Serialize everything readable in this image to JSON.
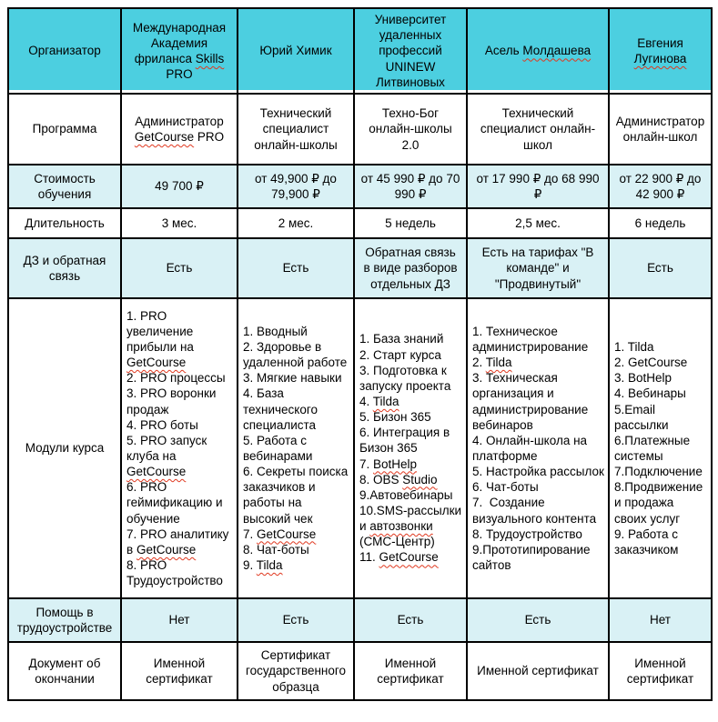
{
  "colors": {
    "header_bg": "#4ccfe0",
    "shaded_row_bg": "#d9f1f5",
    "row_bg": "#ffffff",
    "border": "#000000",
    "spellcheck_underline": "#e0381f",
    "text": "#000000"
  },
  "table": {
    "header": {
      "label": "Организатор",
      "organizers": [
        {
          "text": "Международная Академия фриланса Skills PRO",
          "squiggle": [
            "Skills"
          ]
        },
        {
          "text": "Юрий Химик",
          "squiggle": []
        },
        {
          "text": "Университет удаленных профессий UNINEW Литвиновых",
          "squiggle": []
        },
        {
          "text": "Асель Молдашева",
          "squiggle": [
            "Молдашева"
          ]
        },
        {
          "text": "Евгения Лугинова",
          "squiggle": [
            "Лугинова"
          ]
        }
      ]
    },
    "rows": [
      {
        "label": "Программа",
        "shaded": false,
        "cells": [
          {
            "text": "Администратор GetCourse PRO",
            "squiggle": [
              "GetCourse"
            ]
          },
          {
            "text": "Технический специалист онлайн-школы"
          },
          {
            "text": "Техно-Бог онлайн-школы 2.0"
          },
          {
            "text": "Технический специалист онлайн-школ"
          },
          {
            "text": "Администратор онлайн-школ"
          }
        ]
      },
      {
        "label": "Стоимость обучения",
        "shaded": true,
        "cells": [
          {
            "text": "49 700 ₽"
          },
          {
            "text": "от 49,900 ₽ до 79,900 ₽"
          },
          {
            "text": "от 45 990 ₽ до 70 990 ₽"
          },
          {
            "text": "от 17 990 ₽ до 68 990 ₽"
          },
          {
            "text": "от 22 900 ₽ до 42 900 ₽"
          }
        ]
      },
      {
        "label": "Длительность",
        "shaded": false,
        "cells": [
          {
            "text": "3 мес."
          },
          {
            "text": "2 мес."
          },
          {
            "text": "5 недель"
          },
          {
            "text": "2,5 мес."
          },
          {
            "text": "6 недель"
          }
        ]
      },
      {
        "label": "ДЗ и обратная связь",
        "shaded": true,
        "cells": [
          {
            "text": "Есть"
          },
          {
            "text": "Есть"
          },
          {
            "text": "Обратная связь в виде разборов отдельных ДЗ"
          },
          {
            "text": "Есть на тарифах \"В команде\" и \"Продвинутый\""
          },
          {
            "text": "Есть"
          }
        ]
      },
      {
        "label": "Модули курса",
        "shaded": false,
        "cells": [
          {
            "lines": [
              "1. PRO увеличение прибыли на GetCourse",
              "2. PRO процессы",
              "3. PRO воронки продаж",
              "4. PRO боты",
              "5. PRO запуск клуба на GetCourse",
              "6. PRO геймификацию и обучение",
              "7. PRO аналитику в GetCourse",
              "8. PRO Трудоустройство"
            ],
            "squiggle": [
              "GetCourse"
            ]
          },
          {
            "lines": [
              "1. Вводный",
              "2. Здоровье в удаленной работе",
              "3. Мягкие навыки",
              "4. База технического специалиста",
              "5. Работа с вебинарами",
              "6. Секреты поиска заказчиков и работы на высокий чек",
              "7. GetCourse",
              "8. Чат-боты",
              "9. Tilda"
            ],
            "squiggle": [
              "GetCourse",
              "Tilda"
            ]
          },
          {
            "lines": [
              "1. База знаний",
              "2. Старт курса",
              "3. Подготовка к запуску проекта",
              "4. Tilda",
              "5. Бизон 365",
              "6. Интеграция в Бизон 365",
              "7. BotHelp",
              "8. OBS Studio",
              "9.Автовебинары",
              "10.SMS-рассылки и автозвонки (СМС-Центр)",
              "11. GetCourse"
            ],
            "squiggle": [
              "Tilda",
              "BotHelp",
              "Studio",
              "автозвонки",
              "GetCourse"
            ]
          },
          {
            "lines": [
              "1. Техническое администрирование",
              "2. Tilda",
              "3. Техническая организация и администрирование вебинаров",
              "4. Онлайн-школа на платформе",
              "5. Настройка рассылок",
              "6. Чат-боты",
              "7.  Создание визуального контента",
              "8. Трудоустройство",
              "9.Прототипирование сайтов"
            ],
            "squiggle": [
              "Tilda"
            ]
          },
          {
            "lines": [
              "1. Tilda",
              "2. GetCourse",
              "3. BotHelp",
              "4. Вебинары",
              "5.Email рассылки",
              "6.Платежные системы",
              "7.Подключение",
              "8.Продвижение и продажа своих услуг",
              "9. Работа с заказчиком"
            ],
            "squiggle": []
          }
        ]
      },
      {
        "label": "Помощь в трудоустройстве",
        "shaded": true,
        "cells": [
          {
            "text": "Нет"
          },
          {
            "text": "Есть"
          },
          {
            "text": "Есть"
          },
          {
            "text": "Есть"
          },
          {
            "text": "Нет"
          }
        ]
      },
      {
        "label": "Документ об окончании",
        "shaded": false,
        "cells": [
          {
            "text": "Именной сертификат"
          },
          {
            "text": "Сертификат государственного образца"
          },
          {
            "text": "Именной сертификат"
          },
          {
            "text": "Именной сертификат"
          },
          {
            "text": "Именной сертификат"
          }
        ]
      }
    ]
  }
}
